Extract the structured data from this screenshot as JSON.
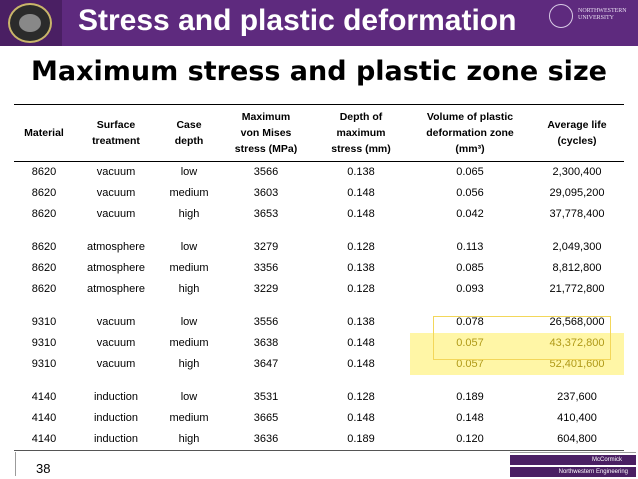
{
  "header": {
    "title": "Stress and plastic deformation",
    "nu_line1": "NORTHWESTERN",
    "nu_line2": "UNIVERSITY"
  },
  "slide": {
    "title": "Maximum stress and plastic zone size",
    "page_number": "38"
  },
  "footer": {
    "mccormick": "McCormick",
    "nu_engineering": "Northwestern Engineering"
  },
  "table": {
    "columns": [
      "Material",
      "Surface\ntreatment",
      "Case\ndepth",
      "Maximum\nvon Mises\nstress (MPa)",
      "Depth of\nmaximum\nstress (mm)",
      "Volume of plastic\ndeformation zone\n(mm³)",
      "Average life\n(cycles)"
    ],
    "groups": [
      [
        [
          "8620",
          "vacuum",
          "low",
          "3566",
          "0.138",
          "0.065",
          "2,300,400"
        ],
        [
          "8620",
          "vacuum",
          "medium",
          "3603",
          "0.148",
          "0.056",
          "29,095,200"
        ],
        [
          "8620",
          "vacuum",
          "high",
          "3653",
          "0.148",
          "0.042",
          "37,778,400"
        ]
      ],
      [
        [
          "8620",
          "atmosphere",
          "low",
          "3279",
          "0.128",
          "0.113",
          "2,049,300"
        ],
        [
          "8620",
          "atmosphere",
          "medium",
          "3356",
          "0.138",
          "0.085",
          "8,812,800"
        ],
        [
          "8620",
          "atmosphere",
          "high",
          "3229",
          "0.128",
          "0.093",
          "21,772,800"
        ]
      ],
      [
        [
          "9310",
          "vacuum",
          "low",
          "3556",
          "0.138",
          "0.078",
          "26,568,000"
        ],
        [
          "9310",
          "vacuum",
          "medium",
          "3638",
          "0.148",
          "0.057",
          "43,372,800"
        ],
        [
          "9310",
          "vacuum",
          "high",
          "3647",
          "0.148",
          "0.057",
          "52,401,600"
        ]
      ],
      [
        [
          "4140",
          "induction",
          "low",
          "3531",
          "0.128",
          "0.189",
          "237,600"
        ],
        [
          "4140",
          "induction",
          "medium",
          "3665",
          "0.148",
          "0.148",
          "410,400"
        ],
        [
          "4140",
          "induction",
          "high",
          "3636",
          "0.189",
          "0.120",
          "604,800"
        ]
      ]
    ]
  },
  "colors": {
    "header_purple": "#5e2a7e",
    "highlight_fill": "#fff6a6",
    "highlight_text": "#b09a18"
  }
}
